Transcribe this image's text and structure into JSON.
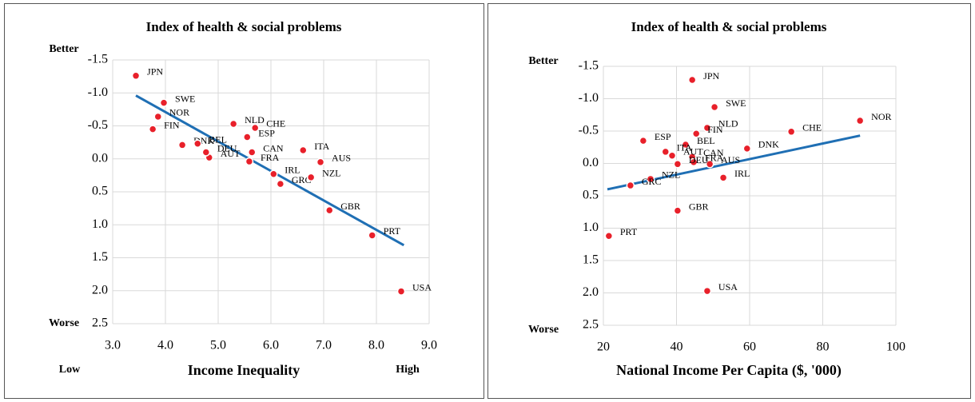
{
  "chart_data": [
    {
      "type": "scatter",
      "title": "Index of health & social problems",
      "xlabel": "Income Inequality",
      "y_top_label": "Better",
      "y_bottom_label": "Worse",
      "x_low_label": "Low",
      "x_high_label": "High",
      "xlim": [
        3,
        9
      ],
      "xticks": [
        {
          "value": 3,
          "label": "3.0"
        },
        {
          "value": 4,
          "label": "4.0"
        },
        {
          "value": 5,
          "label": "5.0"
        },
        {
          "value": 6,
          "label": "6.0"
        },
        {
          "value": 7,
          "label": "7.0"
        },
        {
          "value": 8,
          "label": "8.0"
        },
        {
          "value": 9,
          "label": "9.0"
        }
      ],
      "ylim": [
        -1.5,
        2.5
      ],
      "y_inverted": true,
      "yticks": [
        -1.5,
        {
          "value": -1,
          "label": "-1.0"
        },
        -0.5,
        {
          "value": 0,
          "label": "0.0"
        },
        0.5,
        {
          "value": 1,
          "label": "1.0"
        },
        1.5,
        {
          "value": 2,
          "label": "2.0"
        },
        2.5
      ],
      "grid": true,
      "series": [
        {
          "color": "#e8202a",
          "labels": [
            "JPN",
            "SWE",
            "NOR",
            "FIN",
            "DNK",
            "BEL",
            "AUT",
            "NLD",
            "CHE",
            "ESP",
            "DEU",
            "CAN",
            "FRA",
            "IRL",
            "GRC",
            "ITA",
            "AUS",
            "NZL",
            "GBR",
            "PRT",
            "USA"
          ],
          "x": [
            3.44,
            3.97,
            3.86,
            3.76,
            4.32,
            4.61,
            4.83,
            5.29,
            5.7,
            5.55,
            4.77,
            5.64,
            5.59,
            6.05,
            6.18,
            6.61,
            6.94,
            6.76,
            7.11,
            7.92,
            8.47
          ],
          "values": [
            -1.26,
            -0.85,
            -0.64,
            -0.45,
            -0.21,
            -0.23,
            -0.02,
            -0.53,
            -0.47,
            -0.33,
            -0.1,
            -0.1,
            0.04,
            0.23,
            0.38,
            -0.13,
            0.05,
            0.28,
            0.78,
            1.16,
            2.01
          ]
        }
      ],
      "trend": {
        "color": "#1f6fb4",
        "x": [
          3.44,
          8.52
        ],
        "values": [
          -0.96,
          1.31
        ]
      }
    },
    {
      "type": "scatter",
      "title": "Index of health & social problems",
      "xlabel": "National Income Per Capita ($, '000)",
      "y_top_label": "Better",
      "y_bottom_label": "Worse",
      "xlim": [
        20,
        100
      ],
      "xticks": [
        20,
        40,
        60,
        80,
        100
      ],
      "ylim": [
        -1.5,
        2.5
      ],
      "y_inverted": true,
      "yticks": [
        -1.5,
        {
          "value": -1,
          "label": "-1.0"
        },
        -0.5,
        {
          "value": 0,
          "label": "0.0"
        },
        0.5,
        {
          "value": 1,
          "label": "1.0"
        },
        1.5,
        {
          "value": 2,
          "label": "2.0"
        },
        2.5
      ],
      "grid": true,
      "series": [
        {
          "color": "#e8202a",
          "labels": [
            "JPN",
            "SWE",
            "NLD",
            "FIN",
            "BEL",
            "CHE",
            "NOR",
            "ESP",
            "ITA",
            "DNK",
            "CAN",
            "AUT",
            "AUS",
            "FRA",
            "DEU",
            "IRL",
            "NZL",
            "GRC",
            "GBR",
            "PRT",
            "USA"
          ],
          "x": [
            44.3,
            50.4,
            48.4,
            45.4,
            42.5,
            71.4,
            90.2,
            30.9,
            37,
            59.3,
            44.3,
            38.8,
            49.1,
            44.7,
            40.3,
            52.8,
            32.9,
            27.4,
            40.3,
            21.5,
            48.4
          ],
          "values": [
            -1.29,
            -0.87,
            -0.55,
            -0.46,
            -0.29,
            -0.49,
            -0.66,
            -0.35,
            -0.18,
            -0.23,
            -0.1,
            -0.12,
            0.01,
            -0.02,
            0.01,
            0.22,
            0.24,
            0.34,
            0.73,
            1.12,
            1.97
          ]
        }
      ],
      "trend": {
        "color": "#1f6fb4",
        "x": [
          21.1,
          90.2
        ],
        "values": [
          0.4,
          -0.43
        ]
      }
    }
  ]
}
